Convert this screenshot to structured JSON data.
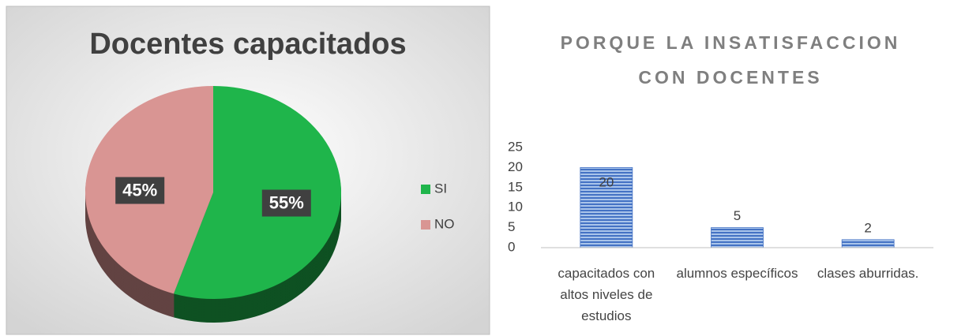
{
  "chart_data": [
    {
      "type": "pie",
      "title": "Docentes capacitados",
      "categories": [
        "SI",
        "NO"
      ],
      "values": [
        55,
        45
      ],
      "value_labels": [
        "55%",
        "45%"
      ],
      "colors": [
        "#1fb54b",
        "#d99593"
      ],
      "legend": "right"
    },
    {
      "type": "bar",
      "title": "PORQUE LA INSATISFACCION CON DOCENTES",
      "categories": [
        "capacitados con altos niveles de estudios",
        "alumnos específicos",
        "clases aburridas."
      ],
      "values": [
        20,
        5,
        2
      ],
      "color": "#4472c4",
      "ylim": [
        0,
        25
      ],
      "yticks": [
        0,
        5,
        10,
        15,
        20,
        25
      ],
      "grid": false
    }
  ]
}
